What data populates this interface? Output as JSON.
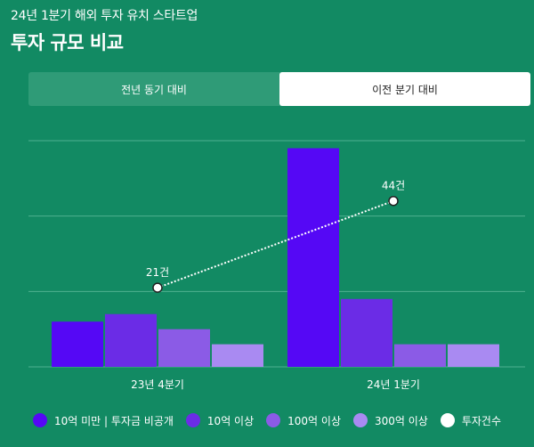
{
  "header": {
    "subtitle": "24년 1분기 해외 투자 유치 스타트업",
    "title": "투자 규모 비교"
  },
  "tabs": [
    {
      "label": "전년 동기 대비",
      "active": false
    },
    {
      "label": "이전 분기 대비",
      "active": true
    }
  ],
  "chart_data": {
    "type": "bar",
    "categories": [
      "23년 4분기",
      "24년 1분기"
    ],
    "series": [
      {
        "name": "10억 미만 | 투자금 비공개",
        "color": "#5508f5",
        "values": [
          12,
          58
        ]
      },
      {
        "name": "10억 이상",
        "color": "#6b2ce6",
        "values": [
          14,
          18
        ]
      },
      {
        "name": "100억 이상",
        "color": "#8b5be6",
        "values": [
          10,
          6
        ]
      },
      {
        "name": "300억 이상",
        "color": "#a98af2",
        "values": [
          6,
          6
        ]
      }
    ],
    "line": {
      "name": "투자건수",
      "color": "#ffffff",
      "values": [
        21,
        44
      ],
      "labels": [
        "21건",
        "44건"
      ]
    },
    "ylim": [
      0,
      60
    ],
    "line_ylim": [
      0,
      60
    ],
    "grid": true,
    "legend": "bottom"
  }
}
